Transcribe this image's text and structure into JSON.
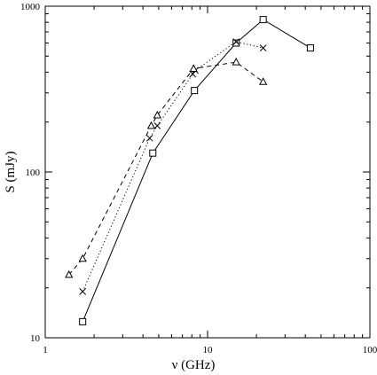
{
  "chart_data": {
    "type": "line",
    "title": "",
    "xlabel": "ν (GHz)",
    "ylabel": "S (mJy)",
    "xscale": "log",
    "yscale": "log",
    "xlim": [
      1,
      100
    ],
    "ylim": [
      10,
      1000
    ],
    "x_ticks": [
      {
        "value": 1,
        "label": "1"
      },
      {
        "value": 10,
        "label": "10"
      },
      {
        "value": 100,
        "label": "100"
      }
    ],
    "y_ticks": [
      {
        "value": 10,
        "label": "10"
      },
      {
        "value": 100,
        "label": "100"
      },
      {
        "value": 1000,
        "label": "1000"
      }
    ],
    "grid": false,
    "legend": "none",
    "series": [
      {
        "marker": "square",
        "line_style": "solid",
        "color": "#000000",
        "points": [
          {
            "x": 1.7,
            "y": 12.5
          },
          {
            "x": 4.6,
            "y": 130
          },
          {
            "x": 8.3,
            "y": 310
          },
          {
            "x": 15,
            "y": 600
          },
          {
            "x": 22,
            "y": 830
          },
          {
            "x": 43,
            "y": 560
          }
        ]
      },
      {
        "marker": "cross",
        "line_style": "dotted",
        "color": "#000000",
        "points": [
          {
            "x": 1.7,
            "y": 19
          },
          {
            "x": 4.4,
            "y": 160
          },
          {
            "x": 4.9,
            "y": 190
          },
          {
            "x": 8.1,
            "y": 390
          },
          {
            "x": 8.4,
            "y": 410
          },
          {
            "x": 15,
            "y": 610
          },
          {
            "x": 22,
            "y": 560
          }
        ]
      },
      {
        "marker": "triangle",
        "line_style": "dashed",
        "color": "#000000",
        "points": [
          {
            "x": 1.4,
            "y": 24
          },
          {
            "x": 1.7,
            "y": 30
          },
          {
            "x": 4.5,
            "y": 190
          },
          {
            "x": 4.9,
            "y": 220
          },
          {
            "x": 8.2,
            "y": 420
          },
          {
            "x": 15,
            "y": 460
          },
          {
            "x": 22,
            "y": 350
          }
        ]
      }
    ]
  }
}
